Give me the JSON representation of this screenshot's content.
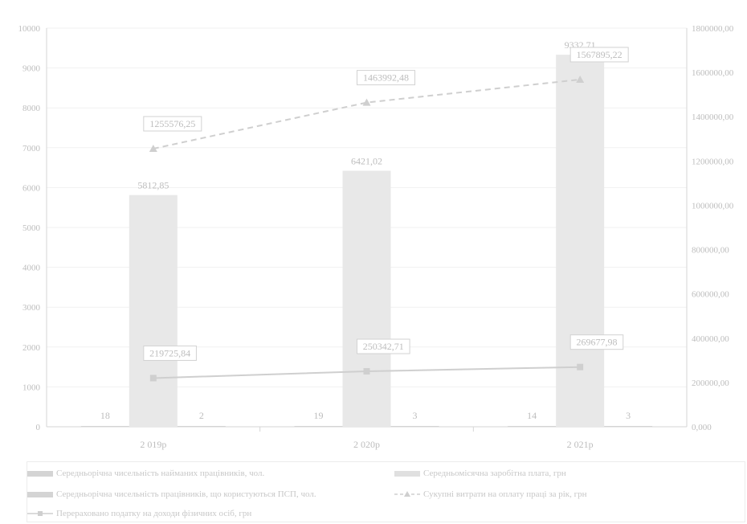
{
  "colors": {
    "axis": "#d6d6d6",
    "grid": "#f1f1f1",
    "text": "#bdbdbd",
    "bar_large": "#e8e8e8",
    "bar_small": "#d4d4d4",
    "line": "#cfcfcf",
    "label_border": "#d2d2d2"
  },
  "chart_data": {
    "type": "bar",
    "categories": [
      "2 019р",
      "2 020р",
      "2 021р"
    ],
    "y_left": {
      "min": 0,
      "max": 10000,
      "step": 1000,
      "ticks": [
        "0",
        "1000",
        "2000",
        "3000",
        "4000",
        "5000",
        "6000",
        "7000",
        "8000",
        "9000",
        "10000"
      ]
    },
    "y_right": {
      "min": 0,
      "max": 1800000,
      "step": 200000,
      "ticks": [
        "0,000",
        "200000,00",
        "400000,00",
        "600000,00",
        "800000,00",
        "1000000,00",
        "1200000,00",
        "1400000,00",
        "1600000,00",
        "1800000,00"
      ]
    },
    "series": [
      {
        "name": "Середньорічна чисельність найманих працівників, чол.",
        "type": "bar",
        "axis": "left",
        "style": "small",
        "values": [
          18,
          19,
          14
        ],
        "labels": [
          "18",
          "19",
          "14"
        ]
      },
      {
        "name": "Середньомісячна заробітна плата, грн",
        "type": "bar",
        "axis": "left",
        "style": "large",
        "values": [
          5812.85,
          6421.02,
          9332.71
        ],
        "labels": [
          "5812,85",
          "6421,02",
          "9332,71"
        ]
      },
      {
        "name": "Середньорічна чисельність працівників, що користуються ПСП, чол.",
        "type": "bar",
        "axis": "left",
        "style": "small",
        "values": [
          2,
          3,
          3
        ],
        "labels": [
          "2",
          "3",
          "3"
        ]
      },
      {
        "name": "Сукупні витрати на оплату праці за рік, грн",
        "type": "line",
        "axis": "right",
        "dash": true,
        "marker": "triangle",
        "values": [
          1255576.25,
          1463992.48,
          1567895.22
        ],
        "labels": [
          "1255576,25",
          "1463992,48",
          "1567895,22"
        ]
      },
      {
        "name": "Перераховано податку на доходи фізичних осіб, грн",
        "type": "line",
        "axis": "right",
        "dash": false,
        "marker": "square",
        "values": [
          219725.84,
          250342.71,
          269677.98
        ],
        "labels": [
          "219725,84",
          "250342,71",
          "269677,98"
        ]
      }
    ],
    "legend_position": "bottom",
    "grid": true
  }
}
